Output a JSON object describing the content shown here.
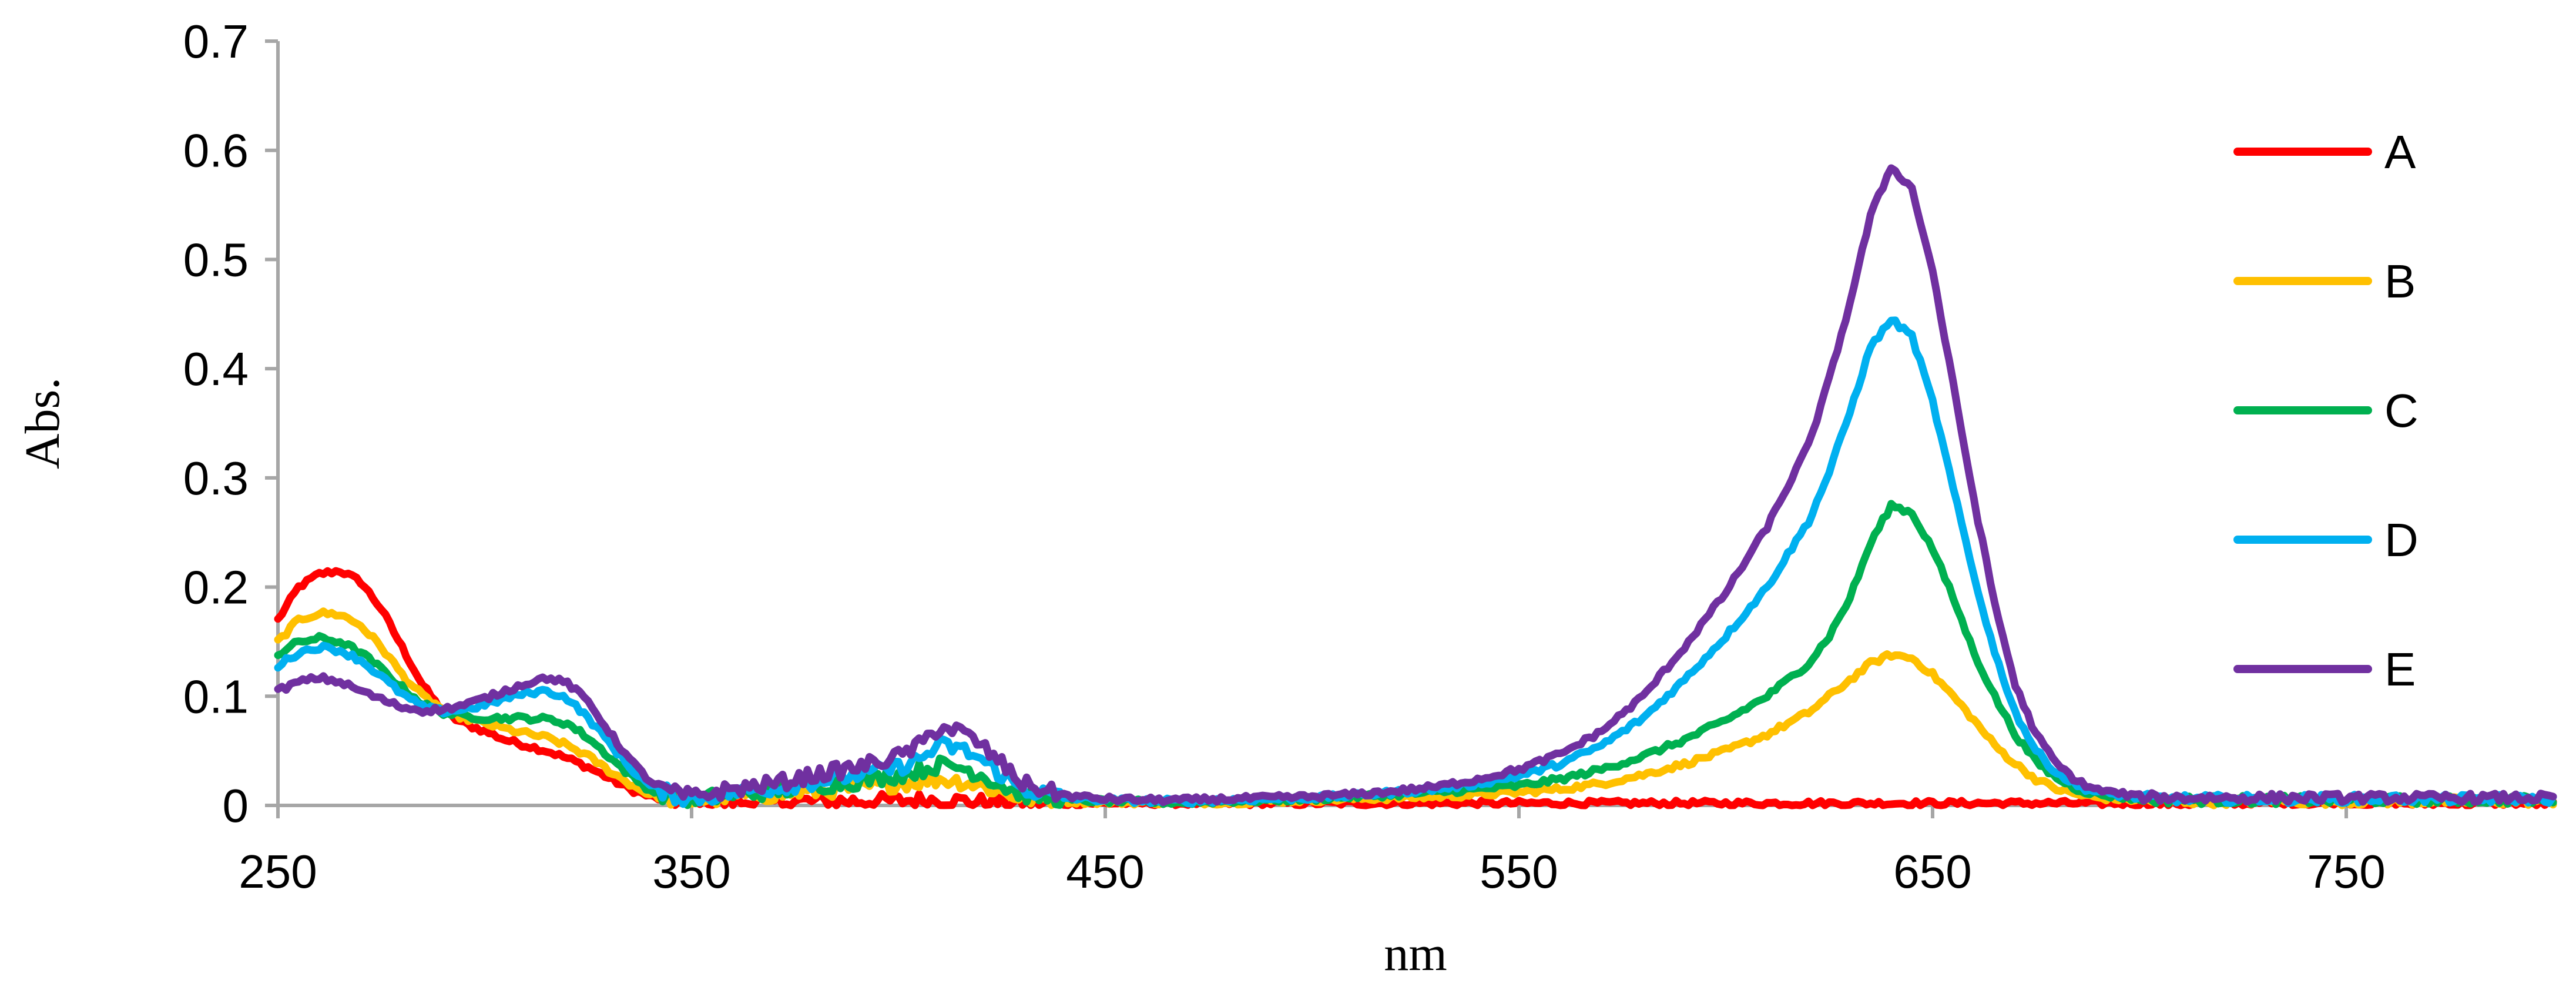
{
  "chart_data": {
    "type": "line",
    "xlabel": "nm",
    "ylabel": "Abs.",
    "xlim": [
      250,
      800
    ],
    "ylim": [
      0,
      0.7
    ],
    "x_ticks": [
      "250",
      "350",
      "450",
      "550",
      "650",
      "750"
    ],
    "y_ticks": [
      "0",
      "0.1",
      "0.2",
      "0.3",
      "0.4",
      "0.5",
      "0.6",
      "0.7"
    ],
    "grid": false,
    "legend_position": "right",
    "x": [
      250,
      255,
      260,
      265,
      270,
      275,
      280,
      285,
      290,
      295,
      300,
      305,
      310,
      315,
      320,
      325,
      330,
      335,
      340,
      345,
      350,
      360,
      370,
      380,
      390,
      400,
      405,
      410,
      415,
      420,
      425,
      430,
      440,
      450,
      460,
      470,
      480,
      490,
      500,
      510,
      520,
      530,
      540,
      550,
      560,
      570,
      580,
      590,
      600,
      610,
      620,
      625,
      630,
      635,
      640,
      645,
      650,
      655,
      660,
      665,
      670,
      675,
      680,
      685,
      690,
      700,
      710,
      720,
      740,
      760,
      780,
      800
    ],
    "series": [
      {
        "name": "A",
        "color": "#ff0000",
        "values": [
          0.17,
          0.2,
          0.212,
          0.215,
          0.205,
          0.18,
          0.145,
          0.11,
          0.085,
          0.075,
          0.068,
          0.06,
          0.055,
          0.05,
          0.043,
          0.035,
          0.025,
          0.015,
          0.008,
          0.004,
          0.002,
          0.003,
          0.003,
          0.004,
          0.004,
          0.004,
          0.005,
          0.005,
          0.004,
          0.003,
          0.003,
          0.002,
          0.002,
          0.002,
          0.002,
          0.002,
          0.002,
          0.002,
          0.002,
          0.002,
          0.002,
          0.002,
          0.002,
          0.002,
          0.002,
          0.002,
          0.002,
          0.002,
          0.002,
          0.002,
          0.002,
          0.002,
          0.002,
          0.002,
          0.002,
          0.002,
          0.002,
          0.002,
          0.002,
          0.002,
          0.002,
          0.002,
          0.002,
          0.002,
          0.002,
          0.002,
          0.002,
          0.002,
          0.002,
          0.002,
          0.002,
          0.002
        ]
      },
      {
        "name": "B",
        "color": "#ffc000",
        "values": [
          0.15,
          0.17,
          0.176,
          0.175,
          0.165,
          0.145,
          0.12,
          0.1,
          0.088,
          0.08,
          0.075,
          0.07,
          0.066,
          0.062,
          0.055,
          0.045,
          0.032,
          0.02,
          0.01,
          0.006,
          0.004,
          0.008,
          0.01,
          0.013,
          0.016,
          0.02,
          0.022,
          0.024,
          0.022,
          0.018,
          0.012,
          0.007,
          0.004,
          0.003,
          0.003,
          0.003,
          0.003,
          0.004,
          0.005,
          0.006,
          0.007,
          0.008,
          0.01,
          0.012,
          0.015,
          0.02,
          0.028,
          0.038,
          0.05,
          0.065,
          0.085,
          0.1,
          0.115,
          0.13,
          0.138,
          0.135,
          0.12,
          0.1,
          0.078,
          0.055,
          0.038,
          0.024,
          0.015,
          0.01,
          0.007,
          0.005,
          0.004,
          0.004,
          0.004,
          0.004,
          0.004,
          0.004
        ]
      },
      {
        "name": "C",
        "color": "#00b050",
        "values": [
          0.138,
          0.15,
          0.153,
          0.15,
          0.14,
          0.125,
          0.108,
          0.093,
          0.085,
          0.082,
          0.08,
          0.08,
          0.08,
          0.079,
          0.075,
          0.062,
          0.045,
          0.028,
          0.014,
          0.008,
          0.005,
          0.01,
          0.013,
          0.018,
          0.022,
          0.028,
          0.032,
          0.037,
          0.035,
          0.028,
          0.018,
          0.01,
          0.005,
          0.004,
          0.003,
          0.003,
          0.004,
          0.005,
          0.006,
          0.008,
          0.01,
          0.012,
          0.015,
          0.018,
          0.024,
          0.033,
          0.045,
          0.06,
          0.078,
          0.1,
          0.13,
          0.155,
          0.19,
          0.24,
          0.275,
          0.268,
          0.235,
          0.19,
          0.14,
          0.1,
          0.065,
          0.04,
          0.025,
          0.015,
          0.01,
          0.006,
          0.005,
          0.005,
          0.005,
          0.005,
          0.005,
          0.005
        ]
      },
      {
        "name": "D",
        "color": "#00b0f0",
        "values": [
          0.128,
          0.14,
          0.145,
          0.142,
          0.133,
          0.118,
          0.102,
          0.09,
          0.086,
          0.088,
          0.092,
          0.098,
          0.103,
          0.105,
          0.098,
          0.08,
          0.058,
          0.035,
          0.018,
          0.01,
          0.006,
          0.012,
          0.016,
          0.022,
          0.028,
          0.035,
          0.042,
          0.055,
          0.052,
          0.042,
          0.028,
          0.015,
          0.007,
          0.005,
          0.004,
          0.004,
          0.005,
          0.006,
          0.007,
          0.009,
          0.012,
          0.015,
          0.02,
          0.027,
          0.038,
          0.055,
          0.08,
          0.115,
          0.155,
          0.2,
          0.26,
          0.305,
          0.36,
          0.42,
          0.445,
          0.43,
          0.37,
          0.29,
          0.21,
          0.14,
          0.085,
          0.05,
          0.03,
          0.018,
          0.012,
          0.007,
          0.006,
          0.006,
          0.006,
          0.006,
          0.006,
          0.006
        ]
      },
      {
        "name": "E",
        "color": "#7030a0",
        "values": [
          0.105,
          0.113,
          0.117,
          0.113,
          0.105,
          0.097,
          0.09,
          0.087,
          0.088,
          0.092,
          0.098,
          0.105,
          0.112,
          0.117,
          0.112,
          0.095,
          0.068,
          0.042,
          0.022,
          0.012,
          0.008,
          0.015,
          0.02,
          0.028,
          0.035,
          0.045,
          0.055,
          0.072,
          0.068,
          0.055,
          0.038,
          0.02,
          0.009,
          0.006,
          0.005,
          0.005,
          0.006,
          0.007,
          0.008,
          0.01,
          0.013,
          0.017,
          0.024,
          0.033,
          0.047,
          0.068,
          0.1,
          0.145,
          0.195,
          0.255,
          0.33,
          0.39,
          0.46,
          0.54,
          0.585,
          0.565,
          0.49,
          0.385,
          0.28,
          0.185,
          0.11,
          0.065,
          0.038,
          0.022,
          0.014,
          0.008,
          0.007,
          0.007,
          0.007,
          0.007,
          0.007,
          0.007
        ]
      }
    ]
  }
}
